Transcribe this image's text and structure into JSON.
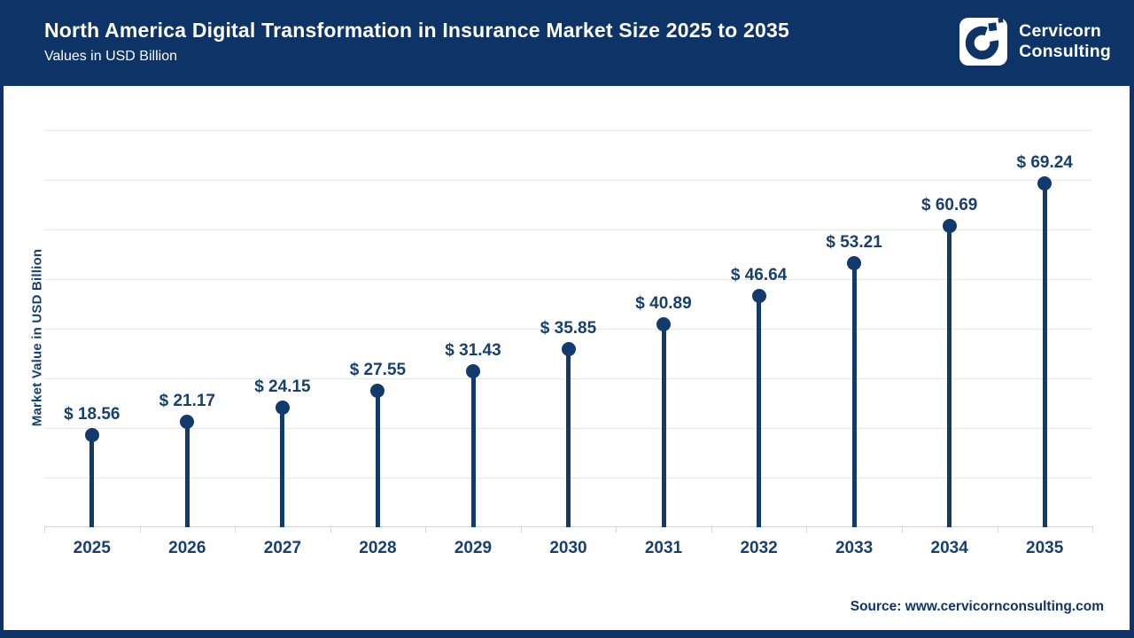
{
  "header": {
    "title": "North America Digital Transformation in Insurance Market Size 2025 to 2035",
    "subtitle": "Values in USD Billion",
    "brand": {
      "line1": "Cervicorn",
      "line2": "Consulting"
    }
  },
  "chart_data": {
    "type": "bar",
    "variant": "lollipop",
    "title": "North America Digital Transformation in Insurance Market Size 2025 to 2035",
    "subtitle": "Values in USD Billion",
    "categories": [
      "2025",
      "2026",
      "2027",
      "2028",
      "2029",
      "2030",
      "2031",
      "2032",
      "2033",
      "2034",
      "2035"
    ],
    "values": [
      18.56,
      21.17,
      24.15,
      27.55,
      31.43,
      35.85,
      40.89,
      46.64,
      53.21,
      60.69,
      69.24
    ],
    "labels": [
      "$ 18.56",
      "$ 21.17",
      "$ 24.15",
      "$ 27.55",
      "$ 31.43",
      "$ 35.85",
      "$ 40.89",
      "$ 46.64",
      "$ 53.21",
      "$ 60.69",
      "$ 69.24"
    ],
    "xlabel": "",
    "ylabel": "Market Value in USD Billion",
    "ylim": [
      0,
      88
    ],
    "grid": {
      "visible": true,
      "step": 10,
      "max": 80
    },
    "y_tick_labels_visible": false,
    "legend_position": "none"
  },
  "footer": {
    "source": "Source: www.cervicornconsulting.com"
  },
  "colors": {
    "navy_header": "#0d3367",
    "navy_stem": "#123a6c",
    "navy_text": "#17406f",
    "gridline": "#e7e7e7",
    "axis": "#d6d6d6",
    "background": "#ffffff"
  }
}
